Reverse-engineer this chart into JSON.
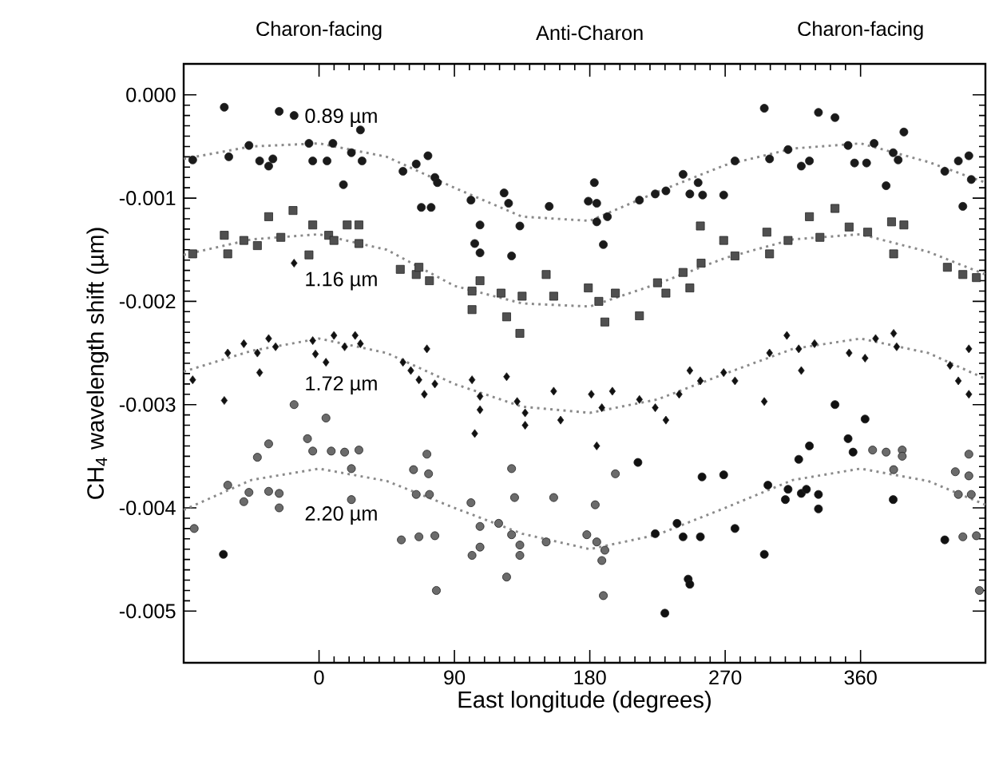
{
  "chart_data": {
    "type": "scatter",
    "xlabel": "East longitude (degrees)",
    "ylabel": "CH$_{4}$ wavelength shift (µm)",
    "xlim": [
      -90,
      443
    ],
    "xticks": [
      0,
      90,
      180,
      270,
      360
    ],
    "ylim": [
      -0.0055,
      0.0003
    ],
    "yticks": [
      {
        "value": 0,
        "label": "0.000"
      },
      {
        "value": -0.001,
        "label": "-0.001"
      },
      {
        "value": -0.002,
        "label": "-0.002"
      },
      {
        "value": -0.003,
        "label": "-0.003"
      },
      {
        "value": -0.004,
        "label": "-0.004"
      },
      {
        "value": -0.005,
        "label": "-0.005"
      }
    ],
    "annotations": [
      "Charon-facing",
      "Anti-Charon",
      "Charon-facing"
    ],
    "series": [
      {
        "color": "#1a1a1a",
        "marker": "circle",
        "x": [
          -63,
          -26.5,
          -16.6,
          27.5,
          -84,
          -60,
          -46.6,
          -39.5,
          -33.5,
          -30.7,
          -6.7,
          -4.2,
          5.3,
          9.2,
          16.2,
          21.5,
          28.6,
          55.8,
          64.6,
          72.4,
          77,
          78.7,
          68,
          74.5,
          101,
          107,
          123,
          126,
          133.5,
          103.5,
          107,
          128,
          153,
          183,
          179,
          184.6,
          184.6,
          191.7,
          189,
          213,
          223.5,
          230.6,
          242,
          252,
          246.5,
          255,
          269,
          276.5,
          299.5,
          311.8,
          296,
          332,
          343,
          320.6,
          326,
          351.7,
          356,
          364,
          369,
          377,
          381.7,
          385,
          388.8,
          416,
          425,
          432,
          433.6,
          428
        ],
        "values": [
          -0.00012,
          -0.00016,
          -0.0002,
          -0.00034,
          -0.00063,
          -0.0006,
          -0.00049,
          -0.00064,
          -0.00069,
          -0.00062,
          -0.00047,
          -0.00064,
          -0.00064,
          -0.00047,
          -0.00087,
          -0.00056,
          -0.00064,
          -0.00074,
          -0.00067,
          -0.00059,
          -0.0008,
          -0.00085,
          -0.00109,
          -0.00109,
          -0.00102,
          -0.00126,
          -0.00095,
          -0.00105,
          -0.00127,
          -0.00144,
          -0.00153,
          -0.00156,
          -0.00108,
          -0.00085,
          -0.00103,
          -0.00105,
          -0.00123,
          -0.00118,
          -0.00145,
          -0.00102,
          -0.00096,
          -0.00093,
          -0.00077,
          -0.00085,
          -0.00096,
          -0.00097,
          -0.00097,
          -0.00064,
          -0.00062,
          -0.00053,
          -0.00013,
          -0.00017,
          -0.00022,
          -0.00069,
          -0.00064,
          -0.00049,
          -0.00066,
          -0.00066,
          -0.00047,
          -0.00088,
          -0.00056,
          -0.00063,
          -0.00036,
          -0.00074,
          -0.00064,
          -0.00059,
          -0.00082,
          -0.00108
        ]
      },
      {
        "color": "#505050",
        "marker": "square",
        "x": [
          -84,
          -63,
          -60.7,
          -50,
          -41,
          -33.5,
          -25.4,
          -17.3,
          -6.7,
          -4.2,
          6.4,
          9.9,
          18.7,
          26.5,
          26.5,
          54,
          64.6,
          73.4,
          66.4,
          101.7,
          101.7,
          107,
          121,
          124.7,
          133.5,
          135,
          151,
          156,
          179,
          186,
          190,
          197,
          213,
          225,
          230.6,
          242,
          246.5,
          254,
          253.5,
          269,
          276.5,
          297.7,
          299.5,
          311.8,
          326,
          333,
          343,
          352.4,
          364.7,
          380.6,
          388.8,
          382,
          417.7,
          428,
          437
        ],
        "values": [
          -0.00154,
          -0.00136,
          -0.00154,
          -0.00141,
          -0.00146,
          -0.00118,
          -0.00138,
          -0.00112,
          -0.00155,
          -0.00126,
          -0.00136,
          -0.00141,
          -0.00126,
          -0.00126,
          -0.00144,
          -0.00169,
          -0.00174,
          -0.0018,
          -0.00167,
          -0.0019,
          -0.00208,
          -0.0018,
          -0.00192,
          -0.00215,
          -0.00231,
          -0.00195,
          -0.00174,
          -0.00195,
          -0.00187,
          -0.002,
          -0.0022,
          -0.00192,
          -0.00214,
          -0.00182,
          -0.00192,
          -0.00172,
          -0.00187,
          -0.00163,
          -0.00127,
          -0.00141,
          -0.00156,
          -0.00133,
          -0.00154,
          -0.00141,
          -0.00118,
          -0.00138,
          -0.0011,
          -0.00128,
          -0.00133,
          -0.00123,
          -0.00126,
          -0.00154,
          -0.00167,
          -0.00174,
          -0.00177
        ]
      },
      {
        "color": "#111111",
        "marker": "diamond",
        "x": [
          -84,
          -63,
          -60.7,
          -50,
          -41,
          -39.5,
          -33.5,
          -28.9,
          -16.6,
          -4.2,
          -2.4,
          4.6,
          9.9,
          17,
          24,
          27.5,
          55.8,
          61,
          66.4,
          71.7,
          70,
          77,
          101.7,
          107,
          107,
          124.7,
          131.7,
          137,
          156,
          103.5,
          137,
          160.6,
          181,
          188,
          195,
          213,
          223.5,
          230.6,
          239.4,
          246.5,
          253.5,
          269,
          276.5,
          299.5,
          296,
          311,
          318.9,
          320.6,
          329.4,
          352.4,
          363,
          370,
          382,
          384,
          419.5,
          425,
          432,
          432,
          184.6
        ],
        "values": [
          -0.00276,
          -0.00296,
          -0.0025,
          -0.00241,
          -0.0025,
          -0.00269,
          -0.00236,
          -0.00244,
          -0.00163,
          -0.00238,
          -0.00251,
          -0.00259,
          -0.00233,
          -0.00244,
          -0.00233,
          -0.00241,
          -0.00259,
          -0.00267,
          -0.00276,
          -0.00246,
          -0.0029,
          -0.0028,
          -0.00276,
          -0.00292,
          -0.00305,
          -0.00273,
          -0.00297,
          -0.00308,
          -0.00287,
          -0.00328,
          -0.0032,
          -0.00315,
          -0.0029,
          -0.00303,
          -0.00287,
          -0.00295,
          -0.00303,
          -0.00315,
          -0.0029,
          -0.00267,
          -0.00277,
          -0.00269,
          -0.00277,
          -0.0025,
          -0.00297,
          -0.00233,
          -0.00246,
          -0.00267,
          -0.00241,
          -0.0025,
          -0.00255,
          -0.00236,
          -0.00231,
          -0.00244,
          -0.00262,
          -0.00277,
          -0.00246,
          -0.0029,
          -0.0034
        ]
      },
      {
        "color": "#6b6b6b",
        "marker": "circle",
        "x": [
          -16.6,
          4.6,
          -83,
          -60.7,
          -50,
          -46.6,
          -41,
          -33.5,
          -33.5,
          -26.5,
          -26.5,
          -7.7,
          -4.2,
          8.1,
          17,
          21.5,
          26.5,
          21.5,
          54.7,
          66.4,
          77,
          62.8,
          71.7,
          72.8,
          64.6,
          73.4,
          78,
          101,
          107,
          107,
          101.7,
          128,
          130,
          119.4,
          128,
          133.5,
          133.5,
          124.7,
          151,
          156,
          197,
          183.6,
          178,
          184.6,
          190,
          188,
          189,
          368,
          377,
          387.7,
          387.7,
          382,
          423,
          432,
          432,
          425,
          433.6,
          428,
          437,
          439
        ],
        "values": [
          -0.003,
          -0.00313,
          -0.0042,
          -0.00378,
          -0.00394,
          -0.00385,
          -0.00351,
          -0.00338,
          -0.00384,
          -0.00386,
          -0.004,
          -0.00333,
          -0.00345,
          -0.00345,
          -0.00346,
          -0.00362,
          -0.00344,
          -0.00392,
          -0.00431,
          -0.00428,
          -0.00427,
          -0.00363,
          -0.00348,
          -0.00367,
          -0.00387,
          -0.00387,
          -0.0048,
          -0.00395,
          -0.00418,
          -0.00438,
          -0.00446,
          -0.00362,
          -0.0039,
          -0.00415,
          -0.00426,
          -0.00436,
          -0.00446,
          -0.00467,
          -0.00433,
          -0.0039,
          -0.00367,
          -0.00397,
          -0.00426,
          -0.00433,
          -0.00441,
          -0.00451,
          -0.00485,
          -0.00344,
          -0.00346,
          -0.00344,
          -0.0035,
          -0.00363,
          -0.00365,
          -0.00348,
          -0.00369,
          -0.00387,
          -0.00387,
          -0.00428,
          -0.00427,
          -0.0048
        ]
      },
      {
        "color": "#111111",
        "marker": "circle",
        "x": [
          -63.6,
          212,
          223.5,
          238,
          242,
          253.5,
          254.6,
          269,
          276.5,
          245.4,
          246.5,
          229.9,
          296,
          298.4,
          310,
          311.8,
          318.9,
          320.6,
          324,
          326,
          332,
          332,
          343,
          351.7,
          355,
          363,
          381.7,
          416
        ],
        "values": [
          -0.00445,
          -0.00356,
          -0.00425,
          -0.00415,
          -0.00428,
          -0.00428,
          -0.0037,
          -0.00368,
          -0.0042,
          -0.00469,
          -0.00474,
          -0.00502,
          -0.00445,
          -0.00378,
          -0.00392,
          -0.00382,
          -0.00353,
          -0.00386,
          -0.00382,
          -0.0034,
          -0.00387,
          -0.00401,
          -0.003,
          -0.00333,
          -0.00346,
          -0.00314,
          -0.00392,
          -0.00431
        ]
      },
      {
        "name": "0.89 µm",
        "type": "line",
        "marker": "none",
        "line_style": "dotted",
        "color": "#8a8a8a",
        "x": [
          -90,
          -45,
          0,
          45,
          90,
          135,
          180,
          225,
          270,
          315,
          360,
          405,
          443
        ],
        "values": [
          -0.00062,
          -0.0005,
          -0.00047,
          -0.0006,
          -0.0009,
          -0.00118,
          -0.00122,
          -0.00094,
          -0.00068,
          -0.00052,
          -0.00047,
          -0.00065,
          -0.00085
        ]
      },
      {
        "name": "1.16 µm",
        "type": "line",
        "marker": "none",
        "line_style": "dotted",
        "color": "#8a8a8a",
        "x": [
          -90,
          -45,
          0,
          45,
          90,
          135,
          180,
          225,
          270,
          315,
          360,
          405,
          443
        ],
        "values": [
          -0.00155,
          -0.0014,
          -0.00135,
          -0.0015,
          -0.00185,
          -0.00202,
          -0.00205,
          -0.00183,
          -0.00158,
          -0.0014,
          -0.00135,
          -0.00152,
          -0.00174
        ]
      },
      {
        "name": "1.72 µm",
        "type": "line",
        "marker": "none",
        "line_style": "dotted",
        "color": "#8a8a8a",
        "x": [
          -90,
          -45,
          0,
          45,
          90,
          135,
          180,
          225,
          270,
          315,
          360,
          405,
          443
        ],
        "values": [
          -0.00268,
          -0.00248,
          -0.00236,
          -0.0025,
          -0.0028,
          -0.00302,
          -0.00308,
          -0.00295,
          -0.0027,
          -0.00246,
          -0.00236,
          -0.0025,
          -0.00275
        ]
      },
      {
        "name": "2.20 µm",
        "type": "line",
        "marker": "none",
        "line_style": "dotted",
        "color": "#8a8a8a",
        "x": [
          -90,
          -45,
          0,
          45,
          90,
          135,
          180,
          225,
          270,
          315,
          360,
          405,
          443
        ],
        "values": [
          -0.00402,
          -0.00373,
          -0.00362,
          -0.00374,
          -0.004,
          -0.00425,
          -0.0044,
          -0.00426,
          -0.004,
          -0.00373,
          -0.00362,
          -0.00374,
          -0.00397
        ]
      }
    ]
  }
}
